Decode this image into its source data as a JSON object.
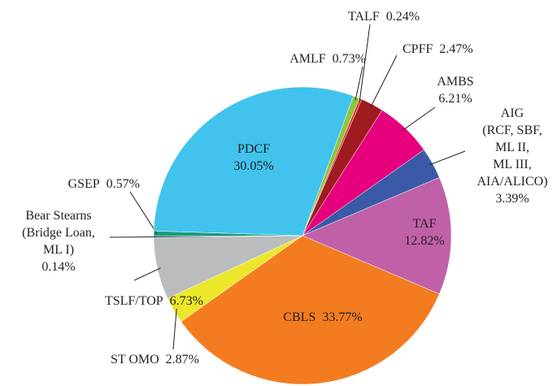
{
  "chart_data": {
    "type": "pie",
    "categories": [
      "AMLF",
      "TALF",
      "CPFF",
      "AMBS",
      "AIG\n(RCF, SBF,\nML II,\nML III,\nAIA/ALICO)",
      "TAF",
      "CBLS",
      "ST OMO",
      "TSLF/TOP",
      "Bear Stearns\n(Bridge Loan,\nML I)",
      "GSEP",
      "PDCF"
    ],
    "values": [
      0.73,
      0.24,
      2.47,
      6.21,
      3.39,
      12.82,
      33.77,
      2.87,
      6.73,
      0.14,
      0.57,
      30.05
    ],
    "value_labels": [
      "0.73%",
      "0.24%",
      "2.47%",
      "6.21%",
      "3.39%",
      "12.82%",
      "33.77%",
      "2.87%",
      "6.73%",
      "0.14%",
      "0.57%",
      "30.05%"
    ],
    "colors": [
      "#8cc63f",
      "#e3231f",
      "#9e1b20",
      "#e6007e",
      "#3a5aa8",
      "#c061a8",
      "#f37c21",
      "#ede72b",
      "#bbbcbe",
      "#1f3f6f",
      "#1a9a78",
      "#41c3ee"
    ]
  }
}
